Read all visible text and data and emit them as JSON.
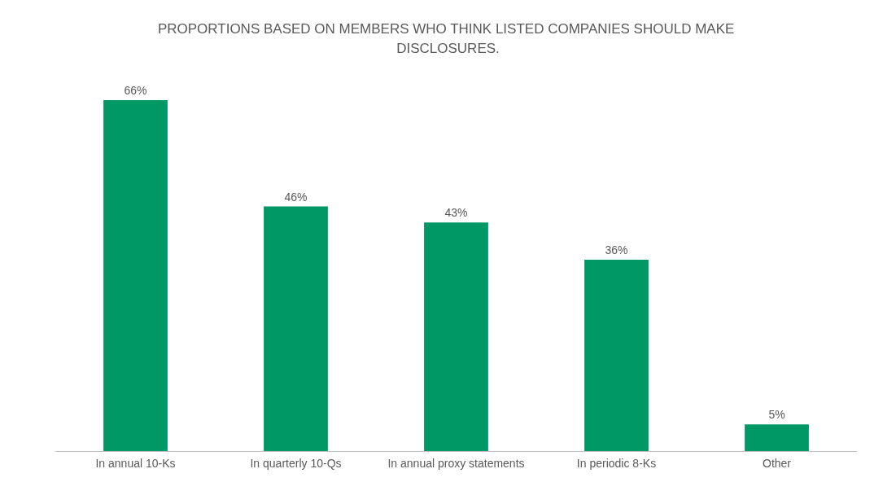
{
  "chart_data": {
    "type": "bar",
    "title": "PROPORTIONS BASED ON MEMBERS WHO THINK LISTED COMPANIES SHOULD MAKE DISCLOSURES.",
    "categories": [
      "In annual 10-Ks",
      "In quarterly 10-Qs",
      "In annual proxy statements",
      "In periodic 8-Ks",
      "Other"
    ],
    "values": [
      66,
      46,
      43,
      36,
      5
    ],
    "value_labels": [
      "66%",
      "46%",
      "43%",
      "36%",
      "5%"
    ],
    "color": "#009966"
  }
}
